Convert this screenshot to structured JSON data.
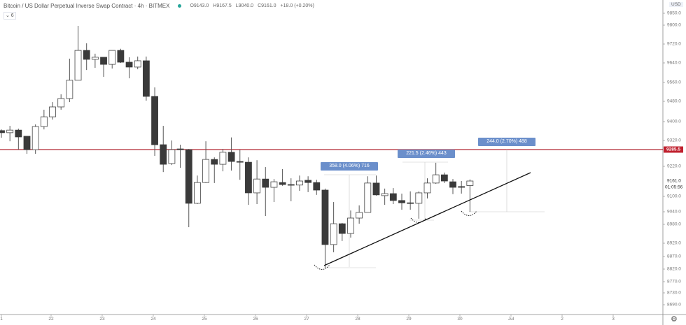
{
  "header": {
    "title": "Bitcoin / US Dollar Perpetual Inverse Swap Contract · 4h · BITMEX",
    "open": "O9143.0",
    "high": "H9167.5",
    "low": "L9040.0",
    "close": "C9161.0",
    "change": "+18.0 (+0.20%)",
    "indicator_toggle": "⌄ 6"
  },
  "colors": {
    "up": "#ffffff",
    "down": "#3a3a3a",
    "wick": "#555555",
    "hline": "#b22833",
    "measure": "#6b8fcb",
    "trend": "#111111"
  },
  "price_axis": {
    "currency": "USD",
    "ticks": [
      "9850.0",
      "9800.0",
      "9720.0",
      "9640.0",
      "9560.0",
      "9480.0",
      "9400.0",
      "9320.0",
      "9220.0",
      "9100.0",
      "9040.0",
      "8980.0",
      "8920.0",
      "8870.0",
      "8820.0",
      "8770.0",
      "8730.0",
      "8690.0"
    ],
    "hline_price": "9285.5",
    "current_price": "9161.0",
    "countdown": "01:05:56"
  },
  "time_axis": [
    "1",
    "22",
    "23",
    "24",
    "25",
    "26",
    "27",
    "28",
    "29",
    "30",
    "Jul",
    "2",
    "3"
  ],
  "measurements": [
    {
      "label": "358.0 (4.06%) 716"
    },
    {
      "label": "221.5 (2.46%) 443"
    },
    {
      "label": "244.0 (2.70%) 488"
    }
  ],
  "candles": [
    [
      9362,
      9367,
      9332,
      9353
    ],
    [
      9353,
      9382,
      9317,
      9364
    ],
    [
      9364,
      9370,
      9285,
      9335
    ],
    [
      9338,
      9338,
      9269,
      9285
    ],
    [
      9285,
      9388,
      9269,
      9379
    ],
    [
      9379,
      9447,
      9367,
      9419
    ],
    [
      9419,
      9477,
      9408,
      9458
    ],
    [
      9458,
      9510,
      9447,
      9492
    ],
    [
      9492,
      9658,
      9477,
      9569
    ],
    [
      9569,
      9797,
      9569,
      9693
    ],
    [
      9693,
      9723,
      9611,
      9655
    ],
    [
      9655,
      9679,
      9620,
      9664
    ],
    [
      9664,
      9664,
      9583,
      9634
    ],
    [
      9634,
      9693,
      9617,
      9693
    ],
    [
      9693,
      9700,
      9640,
      9643
    ],
    [
      9643,
      9664,
      9577,
      9623
    ],
    [
      9623,
      9667,
      9614,
      9649
    ],
    [
      9649,
      9667,
      9483,
      9501
    ],
    [
      9501,
      9539,
      9261,
      9304
    ],
    [
      9304,
      9382,
      9197,
      9228
    ],
    [
      9231,
      9320,
      9225,
      9285
    ],
    [
      9288,
      9304,
      9214,
      9285
    ],
    [
      9285,
      9288,
      8971,
      9073
    ],
    [
      9073,
      9183,
      9070,
      9155
    ],
    [
      9155,
      9317,
      9153,
      9247
    ],
    [
      9247,
      9255,
      9153,
      9228
    ],
    [
      9228,
      9288,
      9200,
      9275
    ],
    [
      9275,
      9333,
      9203,
      9239
    ],
    [
      9239,
      9285,
      9166,
      9236
    ],
    [
      9236,
      9255,
      9067,
      9114
    ],
    [
      9114,
      9244,
      9070,
      9169
    ],
    [
      9169,
      9217,
      9020,
      9136
    ],
    [
      9136,
      9169,
      9078,
      9158
    ],
    [
      9155,
      9209,
      9142,
      9147
    ],
    [
      9147,
      9172,
      9081,
      9145
    ],
    [
      9145,
      9183,
      9122,
      9161
    ],
    [
      9164,
      9180,
      9117,
      9155
    ],
    [
      9155,
      9166,
      9106,
      9125
    ],
    [
      9125,
      9131,
      8826,
      8915
    ],
    [
      8915,
      9078,
      8886,
      8983
    ],
    [
      8983,
      8987,
      8927,
      8951
    ],
    [
      8951,
      9045,
      8938,
      9010
    ],
    [
      9010,
      9065,
      8983,
      9037
    ],
    [
      9037,
      9180,
      9037,
      9153
    ],
    [
      9153,
      9183,
      9103,
      9106
    ],
    [
      9103,
      9131,
      9067,
      9111
    ],
    [
      9111,
      9133,
      9070,
      9084
    ],
    [
      9084,
      9111,
      9048,
      9075
    ],
    [
      9075,
      9120,
      9048,
      9073
    ],
    [
      9073,
      9120,
      9007,
      9114
    ],
    [
      9114,
      9172,
      9092,
      9153
    ],
    [
      9153,
      9234,
      9150,
      9186
    ],
    [
      9186,
      9195,
      9153,
      9161
    ],
    [
      9158,
      9169,
      9109,
      9136
    ],
    [
      9139,
      9161,
      9111,
      9136
    ],
    [
      9143,
      9167.5,
      9040,
      9161
    ]
  ]
}
